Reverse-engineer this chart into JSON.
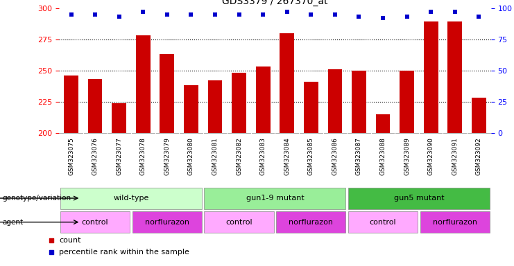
{
  "title": "GDS3379 / 267370_at",
  "samples": [
    "GSM323075",
    "GSM323076",
    "GSM323077",
    "GSM323078",
    "GSM323079",
    "GSM323080",
    "GSM323081",
    "GSM323082",
    "GSM323083",
    "GSM323084",
    "GSM323085",
    "GSM323086",
    "GSM323087",
    "GSM323088",
    "GSM323089",
    "GSM323090",
    "GSM323091",
    "GSM323092"
  ],
  "counts": [
    246,
    243,
    224,
    278,
    263,
    238,
    242,
    248,
    253,
    280,
    241,
    251,
    250,
    215,
    250,
    289,
    289,
    228
  ],
  "percentile_ranks": [
    95,
    95,
    93,
    97,
    95,
    95,
    95,
    95,
    95,
    97,
    95,
    95,
    93,
    92,
    93,
    97,
    97,
    93
  ],
  "ymin": 200,
  "ymax": 300,
  "yticks": [
    200,
    225,
    250,
    275,
    300
  ],
  "right_yticks": [
    0,
    25,
    50,
    75,
    100
  ],
  "bar_color": "#cc0000",
  "dot_color": "#0000cc",
  "bg_color": "#dddddd",
  "genotype_groups": [
    {
      "label": "wild-type",
      "start": 0,
      "end": 5,
      "color": "#ccffcc"
    },
    {
      "label": "gun1-9 mutant",
      "start": 6,
      "end": 11,
      "color": "#99ee99"
    },
    {
      "label": "gun5 mutant",
      "start": 12,
      "end": 17,
      "color": "#44bb44"
    }
  ],
  "agent_groups": [
    {
      "label": "control",
      "start": 0,
      "end": 2,
      "color": "#ffaaff"
    },
    {
      "label": "norflurazon",
      "start": 3,
      "end": 5,
      "color": "#dd44dd"
    },
    {
      "label": "control",
      "start": 6,
      "end": 8,
      "color": "#ffaaff"
    },
    {
      "label": "norflurazon",
      "start": 9,
      "end": 11,
      "color": "#dd44dd"
    },
    {
      "label": "control",
      "start": 12,
      "end": 14,
      "color": "#ffaaff"
    },
    {
      "label": "norflurazon",
      "start": 15,
      "end": 17,
      "color": "#dd44dd"
    }
  ]
}
